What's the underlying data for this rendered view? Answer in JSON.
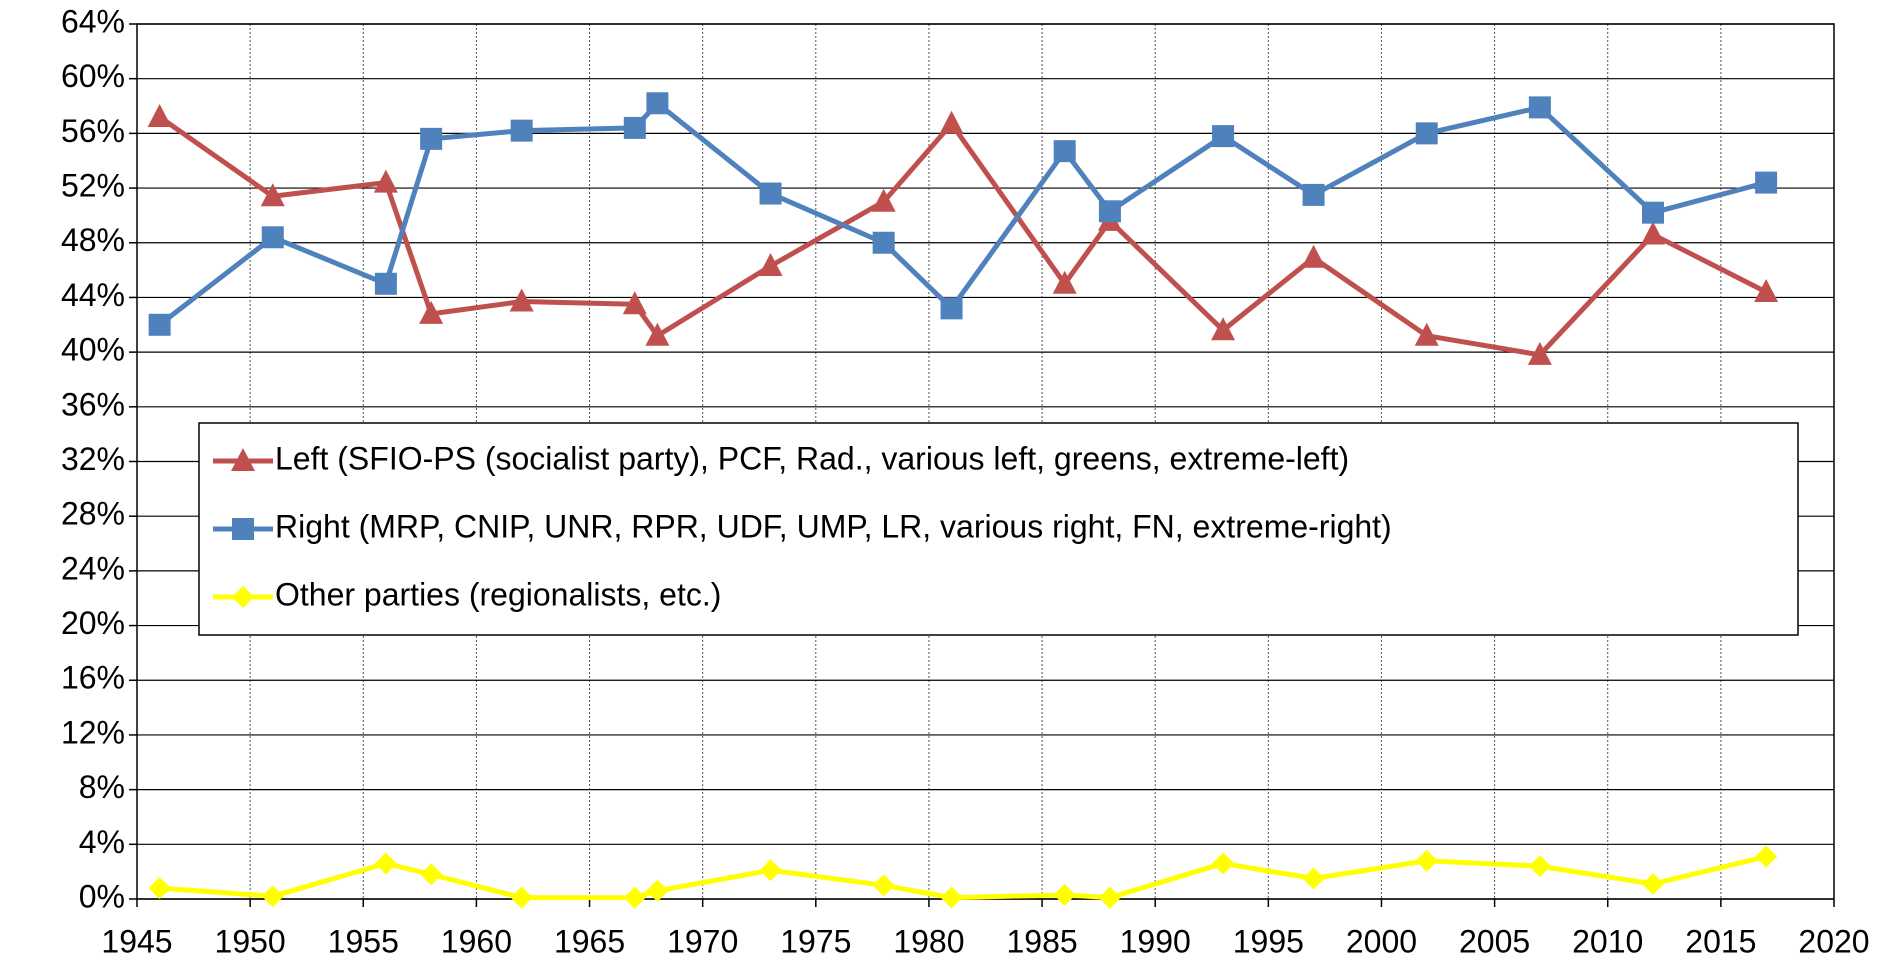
{
  "chart_data": {
    "type": "line",
    "x": [
      1946,
      1951,
      1956,
      1958,
      1962,
      1967,
      1968,
      1973,
      1978,
      1981,
      1986,
      1988,
      1993,
      1997,
      2002,
      2007,
      2012,
      2017
    ],
    "series": [
      {
        "name": "Left (SFIO-PS (socialist party), PCF, Rad., various left, greens, extreme-left)",
        "color": "#c0504d",
        "marker": "triangle",
        "values": [
          57.2,
          51.4,
          52.4,
          42.8,
          43.7,
          43.5,
          41.2,
          46.3,
          51.0,
          56.7,
          45.0,
          49.6,
          41.6,
          46.9,
          41.2,
          39.8,
          48.6,
          44.4
        ]
      },
      {
        "name": "Right (MRP, CNIP, UNR, RPR, UDF, UMP, LR, various right, FN, extreme-right)",
        "color": "#4f81bd",
        "marker": "square",
        "values": [
          42.0,
          48.4,
          45.0,
          55.6,
          56.2,
          56.4,
          58.2,
          51.6,
          48.0,
          43.2,
          54.7,
          50.3,
          55.8,
          51.5,
          56.0,
          57.9,
          50.2,
          52.4
        ]
      },
      {
        "name": "Other parties (regionalists, etc.)",
        "color": "#ffff00",
        "marker": "diamond",
        "values": [
          0.8,
          0.2,
          2.6,
          1.8,
          0.1,
          0.1,
          0.6,
          2.1,
          1.0,
          0.1,
          0.3,
          0.1,
          2.6,
          1.5,
          2.8,
          2.4,
          1.1,
          3.1
        ]
      }
    ],
    "xlim": [
      1945,
      2020
    ],
    "xticks": [
      1945,
      1950,
      1955,
      1960,
      1965,
      1970,
      1975,
      1980,
      1985,
      1990,
      1995,
      2000,
      2005,
      2010,
      2015,
      2020
    ],
    "ylim": [
      0,
      64
    ],
    "yticks": [
      {
        "value": 0,
        "label": "0%"
      },
      {
        "value": 4,
        "label": "4%"
      },
      {
        "value": 8,
        "label": "8%"
      },
      {
        "value": 12,
        "label": "12%"
      },
      {
        "value": 16,
        "label": "16%"
      },
      {
        "value": 20,
        "label": "20%"
      },
      {
        "value": 24,
        "label": "24%"
      },
      {
        "value": 28,
        "label": "28%"
      },
      {
        "value": 32,
        "label": "32%"
      },
      {
        "value": 36,
        "label": "36%"
      },
      {
        "value": 40,
        "label": "40%"
      },
      {
        "value": 44,
        "label": "44%"
      },
      {
        "value": 48,
        "label": "48%"
      },
      {
        "value": 52,
        "label": "52%"
      },
      {
        "value": 56,
        "label": "56%"
      },
      {
        "value": 60,
        "label": "60%"
      },
      {
        "value": 64,
        "label": "64%"
      }
    ],
    "grid": true
  }
}
